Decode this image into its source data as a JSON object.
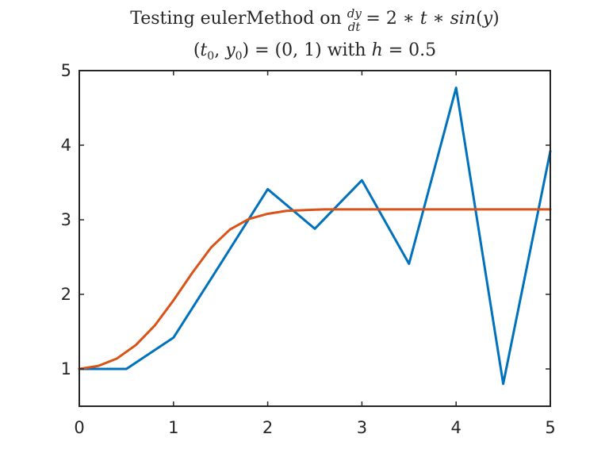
{
  "chart_data": {
    "type": "line",
    "title_lines": [
      "Testing eulerMethod on dy/dt = 2 * t * sin(y)",
      "(t0, y0) = (0, 1) with h = 0.5"
    ],
    "xlabel": "",
    "ylabel": "",
    "xlim": [
      0,
      5
    ],
    "ylim": [
      0.5,
      5
    ],
    "xticks": [
      "0",
      "1",
      "2",
      "3",
      "4",
      "5"
    ],
    "yticks": [
      "1",
      "2",
      "3",
      "4",
      "5"
    ],
    "grid": false,
    "series": [
      {
        "color": "#0072BD",
        "x": [
          0,
          0.5,
          1.0,
          1.5,
          2.0,
          2.5,
          3.0,
          3.5,
          4.0,
          4.5,
          5.0
        ],
        "y": [
          1.0,
          1.0,
          1.42,
          2.41,
          3.41,
          2.88,
          3.53,
          2.41,
          4.77,
          0.8,
          3.92
        ]
      },
      {
        "color": "#D95319",
        "x": [
          0,
          0.2,
          0.4,
          0.6,
          0.8,
          1.0,
          1.2,
          1.4,
          1.6,
          1.8,
          2.0,
          2.2,
          2.4,
          2.6,
          2.8,
          3.0,
          3.5,
          4.0,
          4.5,
          5.0
        ],
        "y": [
          1.0,
          1.04,
          1.14,
          1.32,
          1.58,
          1.92,
          2.29,
          2.63,
          2.87,
          3.01,
          3.08,
          3.12,
          3.13,
          3.14,
          3.14,
          3.14,
          3.14,
          3.14,
          3.14,
          3.14
        ]
      }
    ]
  }
}
